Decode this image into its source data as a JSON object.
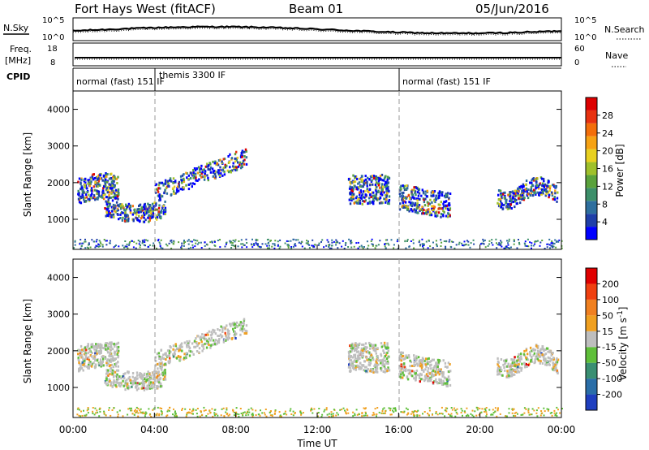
{
  "header": {
    "station": "Fort Hays West (fitACF)",
    "beam": "Beam 01",
    "date": "05/Jun/2016"
  },
  "strip_labels": {
    "nsky": "N.Sky",
    "nsky_ticks": [
      "10^5",
      "10^0"
    ],
    "nsearch": "N.Search",
    "nsearch_ticks": [
      "10^5",
      "10^0"
    ],
    "freq": "Freq.",
    "freq_unit": "[MHz]",
    "freq_ticks": [
      "18",
      "8"
    ],
    "nave": "Nave",
    "nave_ticks": [
      "60",
      "0"
    ],
    "cpid": "CPID"
  },
  "cpid_segments": [
    {
      "label": "normal (fast) 151 IF",
      "start_h": 0,
      "end_h": 4
    },
    {
      "label": "themis 3300 IF",
      "start_h": 4,
      "end_h": 16
    },
    {
      "label": "normal (fast) 151 IF",
      "start_h": 16,
      "end_h": 24
    }
  ],
  "chart_data": [
    {
      "type": "heatmap",
      "name": "power",
      "ylabel": "Slant Range [km]",
      "yticks": [
        "1000",
        "2000",
        "3000",
        "4000"
      ],
      "ylim": [
        180,
        4500
      ],
      "xlim": [
        0,
        24
      ],
      "colorbar_label": "Power [dB]",
      "colorbar_ticks": [
        "4",
        "8",
        "12",
        "16",
        "20",
        "24",
        "28"
      ],
      "colors": [
        "#0000ff",
        "#1f3fa8",
        "#2e6f9e",
        "#3d8f6a",
        "#5aa23c",
        "#9fc02b",
        "#e8d020",
        "#f6a214",
        "#f36e0a",
        "#e83210",
        "#dd0000"
      ]
    },
    {
      "type": "heatmap",
      "name": "velocity",
      "ylabel": "Slant Range [km]",
      "yticks": [
        "1000",
        "2000",
        "3000",
        "4000"
      ],
      "ylim": [
        180,
        4500
      ],
      "xlim": [
        0,
        24
      ],
      "colorbar_label": "Velocity [m s^-1]",
      "colorbar_ticks": [
        "200",
        "100",
        "50",
        "15",
        "-15",
        "-50",
        "-100",
        "-200"
      ],
      "colors": [
        "#1f3fbf",
        "#2a6ea8",
        "#3a8f72",
        "#5fbf3a",
        "#bebebe",
        "#f0a020",
        "#f08020",
        "#f04010",
        "#e00000"
      ]
    }
  ],
  "xaxis": {
    "ticks": [
      "00:00",
      "04:00",
      "08:00",
      "12:00",
      "16:00",
      "20:00",
      "00:00"
    ],
    "label": "Time UT"
  }
}
